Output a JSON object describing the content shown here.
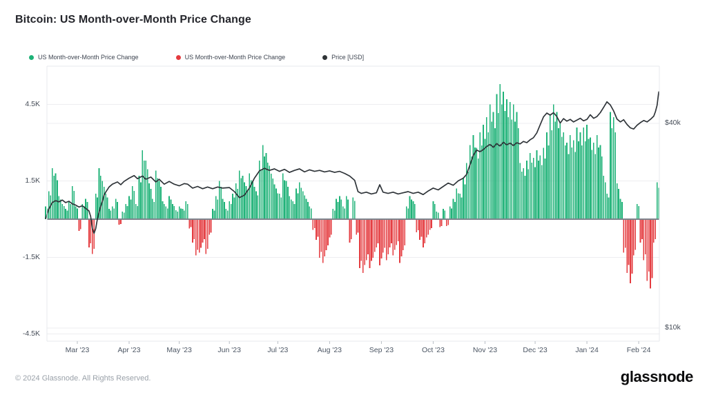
{
  "header": {
    "title": "Bitcoin: US Month-over-Month Price Change"
  },
  "legend": [
    {
      "label": "US Month-over-Month Price Change",
      "color": "#1eb277"
    },
    {
      "label": "US Month-over-Month Price Change",
      "color": "#e43b3f"
    },
    {
      "label": "Price [USD]",
      "color": "#2f3437"
    }
  ],
  "footer": {
    "copyright": "© 2024 Glassnode. All Rights Reserved.",
    "brand": "glassnode"
  },
  "palette": {
    "positive": "#1eb277",
    "negative": "#e43b3f",
    "price_line": "#2f3439",
    "grid": "#ededf0",
    "zero_line": "#7d848c",
    "border": "#e7e9ec",
    "tick_mark": "#b7bdc4"
  },
  "axes": {
    "left_ticks": [
      "4.5K",
      "1.5K",
      "-1.5K",
      "-4.5K"
    ],
    "right_ticks": [
      "$40k",
      "$10k"
    ],
    "x_ticks": [
      "Mar '23",
      "Apr '23",
      "May '23",
      "Jun '23",
      "Jul '23",
      "Aug '23",
      "Sep '23",
      "Oct '23",
      "Nov '23",
      "Dec '23",
      "Jan '24",
      "Feb '24"
    ]
  },
  "chart_data": {
    "type": "bar+line",
    "title": "Bitcoin: US Month-over-Month Price Change",
    "x_axis": {
      "unit": "day",
      "days_total": 368,
      "month_labels": [
        "Mar '23",
        "Apr '23",
        "May '23",
        "Jun '23",
        "Jul '23",
        "Aug '23",
        "Sep '23",
        "Oct '23",
        "Nov '23",
        "Dec '23",
        "Jan '24",
        "Feb '24"
      ],
      "month_days": [
        19,
        50,
        80,
        110,
        139,
        170,
        201,
        232,
        263,
        293,
        324,
        355
      ]
    },
    "y_axis_left": {
      "name": "US Month-over-Month Price Change",
      "unit": "K USD",
      "ticks_k": [
        4.5,
        1.5,
        -1.5,
        -4.5
      ],
      "range_k": [
        -6,
        6
      ],
      "scale": "linear"
    },
    "y_axis_right": {
      "name": "Price [USD]",
      "ticks_usd_k": [
        40,
        10
      ],
      "scale": "log"
    },
    "bar_series": {
      "name": "US Month-over-Month Price Change",
      "positive_color": "#1eb277",
      "negative_color": "#e43b3f",
      "resolution_days": 2,
      "values_k": [
        0.5,
        1.1,
        2.0,
        1.8,
        0.9,
        0.6,
        0.4,
        0.7,
        1.3,
        0.5,
        -0.45,
        0.6,
        0.8,
        -1.1,
        -1.35,
        1.0,
        2.0,
        1.5,
        1.0,
        0.4,
        0.5,
        0.8,
        -0.2,
        0.3,
        0.6,
        0.9,
        1.3,
        0.6,
        1.7,
        2.7,
        2.3,
        1.4,
        0.8,
        1.9,
        1.5,
        0.7,
        0.5,
        0.9,
        0.6,
        0.35,
        0.5,
        0.4,
        0.7,
        -0.35,
        -0.9,
        -1.4,
        -1.3,
        -0.9,
        -1.35,
        -0.6,
        0.4,
        0.9,
        1.5,
        0.8,
        0.4,
        0.7,
        1.0,
        1.4,
        1.9,
        1.7,
        1.3,
        1.8,
        1.5,
        1.1,
        2.3,
        2.9,
        2.6,
        2.1,
        1.6,
        1.2,
        1.0,
        1.8,
        1.5,
        0.9,
        0.7,
        1.2,
        1.45,
        1.1,
        0.8,
        0.5,
        -0.4,
        -0.8,
        -1.5,
        -1.7,
        -1.2,
        -0.7,
        0.4,
        0.8,
        0.9,
        0.5,
        0.9,
        -0.9,
        0.85,
        -0.6,
        -1.9,
        -2.1,
        -1.6,
        -1.9,
        -1.5,
        -1.1,
        -1.8,
        -1.3,
        -1.6,
        -1.1,
        -1.4,
        -1.0,
        -1.7,
        -1.2,
        0.5,
        0.9,
        0.7,
        -0.5,
        -0.8,
        -1.1,
        -0.7,
        -0.4,
        0.7,
        0.3,
        -0.3,
        0.4,
        -0.25,
        0.5,
        0.8,
        1.2,
        1.0,
        1.6,
        2.2,
        2.9,
        3.3,
        2.8,
        3.4,
        3.7,
        4.0,
        4.5,
        4.2,
        4.9,
        5.3,
        5.0,
        4.7,
        4.6,
        4.5,
        4.2,
        2.2,
        2.0,
        2.3,
        2.6,
        2.4,
        2.7,
        2.5,
        2.8,
        3.4,
        4.1,
        4.5,
        4.2,
        3.8,
        3.4,
        3.0,
        3.3,
        3.1,
        3.6,
        3.4,
        3.6,
        3.7,
        3.2,
        3.0,
        3.3,
        2.9,
        1.7,
        1.0,
        4.2,
        4.0,
        1.4,
        0.8,
        -1.3,
        -2.1,
        -2.5,
        -1.4,
        0.6,
        -0.9,
        -1.6,
        -2.4,
        -2.7,
        -0.9,
        1.45
      ]
    },
    "price_series": {
      "name": "Price [USD]",
      "unit": "K USD",
      "points_day_priceK": [
        [
          0,
          21.0
        ],
        [
          2,
          22.4
        ],
        [
          4,
          23.4
        ],
        [
          6,
          23.7
        ],
        [
          8,
          23.5
        ],
        [
          10,
          23.8
        ],
        [
          12,
          23.4
        ],
        [
          14,
          23.6
        ],
        [
          16,
          23.2
        ],
        [
          18,
          23.0
        ],
        [
          20,
          22.7
        ],
        [
          22,
          22.9
        ],
        [
          24,
          22.5
        ],
        [
          26,
          22.1
        ],
        [
          27,
          21.3
        ],
        [
          28,
          19.6
        ],
        [
          29,
          19.0
        ],
        [
          30,
          19.6
        ],
        [
          31,
          20.9
        ],
        [
          32,
          21.9
        ],
        [
          33,
          22.8
        ],
        [
          34,
          23.6
        ],
        [
          35,
          24.6
        ],
        [
          36,
          25.1
        ],
        [
          38,
          26.0
        ],
        [
          40,
          26.5
        ],
        [
          43,
          26.9
        ],
        [
          45,
          26.4
        ],
        [
          47,
          27.0
        ],
        [
          50,
          27.6
        ],
        [
          53,
          28.1
        ],
        [
          55,
          27.5
        ],
        [
          58,
          28.0
        ],
        [
          60,
          27.4
        ],
        [
          63,
          27.8
        ],
        [
          66,
          26.9
        ],
        [
          68,
          27.4
        ],
        [
          71,
          26.5
        ],
        [
          74,
          27.0
        ],
        [
          77,
          26.5
        ],
        [
          80,
          26.2
        ],
        [
          83,
          26.6
        ],
        [
          85,
          26.5
        ],
        [
          88,
          25.8
        ],
        [
          91,
          26.1
        ],
        [
          94,
          25.7
        ],
        [
          97,
          26.0
        ],
        [
          100,
          25.7
        ],
        [
          103,
          26.0
        ],
        [
          106,
          25.8
        ],
        [
          110,
          25.9
        ],
        [
          113,
          25.2
        ],
        [
          116,
          24.2
        ],
        [
          119,
          24.6
        ],
        [
          122,
          25.8
        ],
        [
          125,
          27.6
        ],
        [
          128,
          29.0
        ],
        [
          131,
          29.5
        ],
        [
          134,
          29.1
        ],
        [
          137,
          29.4
        ],
        [
          140,
          28.9
        ],
        [
          143,
          29.3
        ],
        [
          146,
          28.7
        ],
        [
          149,
          29.1
        ],
        [
          152,
          29.4
        ],
        [
          155,
          28.8
        ],
        [
          158,
          29.2
        ],
        [
          161,
          28.9
        ],
        [
          164,
          29.1
        ],
        [
          167,
          28.8
        ],
        [
          170,
          29.0
        ],
        [
          173,
          28.7
        ],
        [
          176,
          28.9
        ],
        [
          179,
          28.5
        ],
        [
          182,
          28.0
        ],
        [
          185,
          27.2
        ],
        [
          187,
          25.2
        ],
        [
          189,
          24.9
        ],
        [
          192,
          25.1
        ],
        [
          195,
          24.8
        ],
        [
          198,
          25.0
        ],
        [
          200,
          26.4
        ],
        [
          202,
          25.1
        ],
        [
          205,
          24.9
        ],
        [
          208,
          25.1
        ],
        [
          211,
          24.8
        ],
        [
          214,
          25.0
        ],
        [
          217,
          25.2
        ],
        [
          220,
          24.9
        ],
        [
          223,
          25.1
        ],
        [
          226,
          24.7
        ],
        [
          229,
          25.3
        ],
        [
          232,
          25.8
        ],
        [
          235,
          25.5
        ],
        [
          238,
          26.1
        ],
        [
          241,
          26.7
        ],
        [
          244,
          26.3
        ],
        [
          247,
          27.1
        ],
        [
          250,
          27.6
        ],
        [
          252,
          28.3
        ],
        [
          254,
          30.2
        ],
        [
          256,
          32.2
        ],
        [
          258,
          33.4
        ],
        [
          260,
          33.0
        ],
        [
          262,
          33.5
        ],
        [
          264,
          34.2
        ],
        [
          266,
          34.7
        ],
        [
          268,
          34.0
        ],
        [
          270,
          34.9
        ],
        [
          272,
          34.3
        ],
        [
          274,
          35.2
        ],
        [
          276,
          34.6
        ],
        [
          278,
          35.0
        ],
        [
          280,
          34.4
        ],
        [
          282,
          35.1
        ],
        [
          284,
          34.8
        ],
        [
          286,
          35.4
        ],
        [
          288,
          35.1
        ],
        [
          290,
          35.8
        ],
        [
          292,
          36.3
        ],
        [
          294,
          37.5
        ],
        [
          296,
          39.6
        ],
        [
          298,
          41.8
        ],
        [
          300,
          42.9
        ],
        [
          302,
          42.3
        ],
        [
          304,
          43.0
        ],
        [
          306,
          41.9
        ],
        [
          308,
          40.1
        ],
        [
          310,
          41.3
        ],
        [
          312,
          40.6
        ],
        [
          314,
          41.1
        ],
        [
          316,
          40.4
        ],
        [
          318,
          40.9
        ],
        [
          320,
          41.4
        ],
        [
          322,
          40.7
        ],
        [
          324,
          41.1
        ],
        [
          326,
          42.4
        ],
        [
          328,
          41.4
        ],
        [
          330,
          41.9
        ],
        [
          332,
          43.0
        ],
        [
          334,
          44.6
        ],
        [
          336,
          46.3
        ],
        [
          338,
          45.3
        ],
        [
          340,
          43.5
        ],
        [
          342,
          41.2
        ],
        [
          344,
          40.4
        ],
        [
          346,
          41.0
        ],
        [
          348,
          39.7
        ],
        [
          350,
          38.8
        ],
        [
          352,
          38.5
        ],
        [
          354,
          39.5
        ],
        [
          356,
          40.2
        ],
        [
          358,
          40.8
        ],
        [
          360,
          40.4
        ],
        [
          362,
          41.1
        ],
        [
          364,
          42.0
        ],
        [
          365,
          43.3
        ],
        [
          366,
          45.2
        ],
        [
          367,
          49.5
        ]
      ]
    }
  }
}
